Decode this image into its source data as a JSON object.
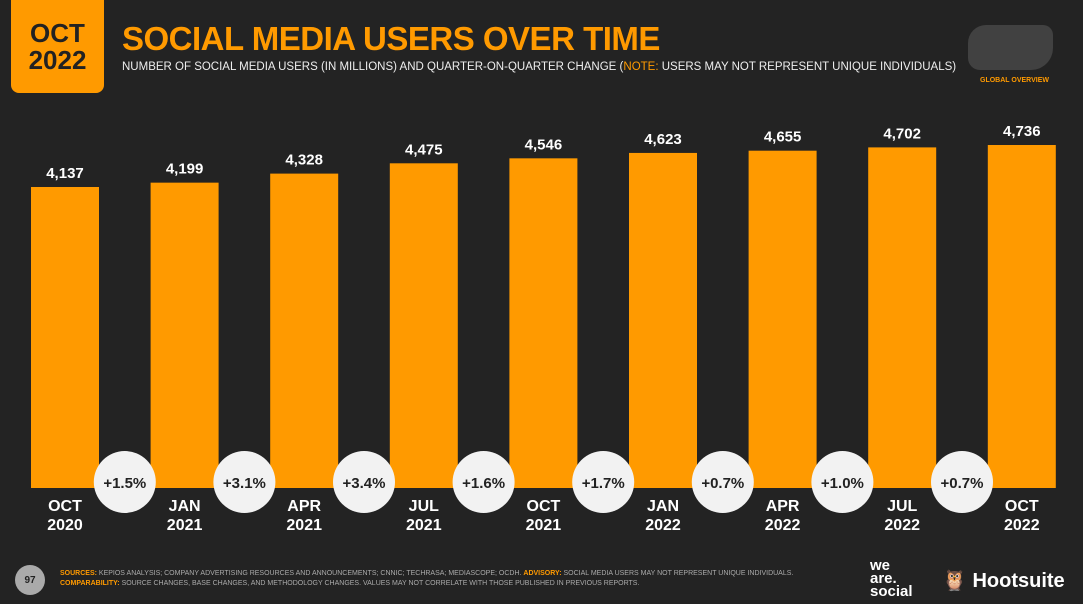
{
  "header": {
    "date_line1": "OCT",
    "date_line2": "2022",
    "title": "SOCIAL MEDIA USERS OVER TIME",
    "subtitle_pre": "NUMBER OF SOCIAL MEDIA USERS (IN MILLIONS) AND QUARTER-ON-QUARTER CHANGE (",
    "subtitle_note": "NOTE:",
    "subtitle_post": " USERS MAY NOT REPRESENT UNIQUE INDIVIDUALS)",
    "global_overview": "GLOBAL OVERVIEW",
    "map_icon": "world-map-icon"
  },
  "chart_data": {
    "type": "bar",
    "categories": [
      [
        "OCT",
        "2020"
      ],
      [
        "JAN",
        "2021"
      ],
      [
        "APR",
        "2021"
      ],
      [
        "JUL",
        "2021"
      ],
      [
        "OCT",
        "2021"
      ],
      [
        "JAN",
        "2022"
      ],
      [
        "APR",
        "2022"
      ],
      [
        "JUL",
        "2022"
      ],
      [
        "OCT",
        "2022"
      ]
    ],
    "values": [
      4137,
      4199,
      4328,
      4475,
      4546,
      4623,
      4655,
      4702,
      4736
    ],
    "value_labels": [
      "4,137",
      "4,199",
      "4,328",
      "4,475",
      "4,546",
      "4,623",
      "4,655",
      "4,702",
      "4,736"
    ],
    "changes": [
      "+1.5%",
      "+3.1%",
      "+3.4%",
      "+1.6%",
      "+1.7%",
      "+0.7%",
      "+1.0%",
      "+0.7%"
    ],
    "bar_color": "#ff9a00",
    "grid": false
  },
  "footer": {
    "page": "97",
    "sources_label": "SOURCES:",
    "sources": " KEPIOS ANALYSIS; COMPANY ADVERTISING RESOURCES AND ANNOUNCEMENTS; CNNIC; TECHRASA; MEDIASCOPE; OCDH. ",
    "advisory_label": "ADVISORY:",
    "advisory": " SOCIAL MEDIA USERS MAY NOT REPRESENT UNIQUE INDIVIDUALS. ",
    "comparability_label": "COMPARABILITY:",
    "comparability": " SOURCE CHANGES, BASE CHANGES, AND METHODOLOGY CHANGES. VALUES MAY NOT CORRELATE WITH THOSE PUBLISHED IN PREVIOUS REPORTS.",
    "logo1": "we are social",
    "logo2": "Hootsuite"
  }
}
